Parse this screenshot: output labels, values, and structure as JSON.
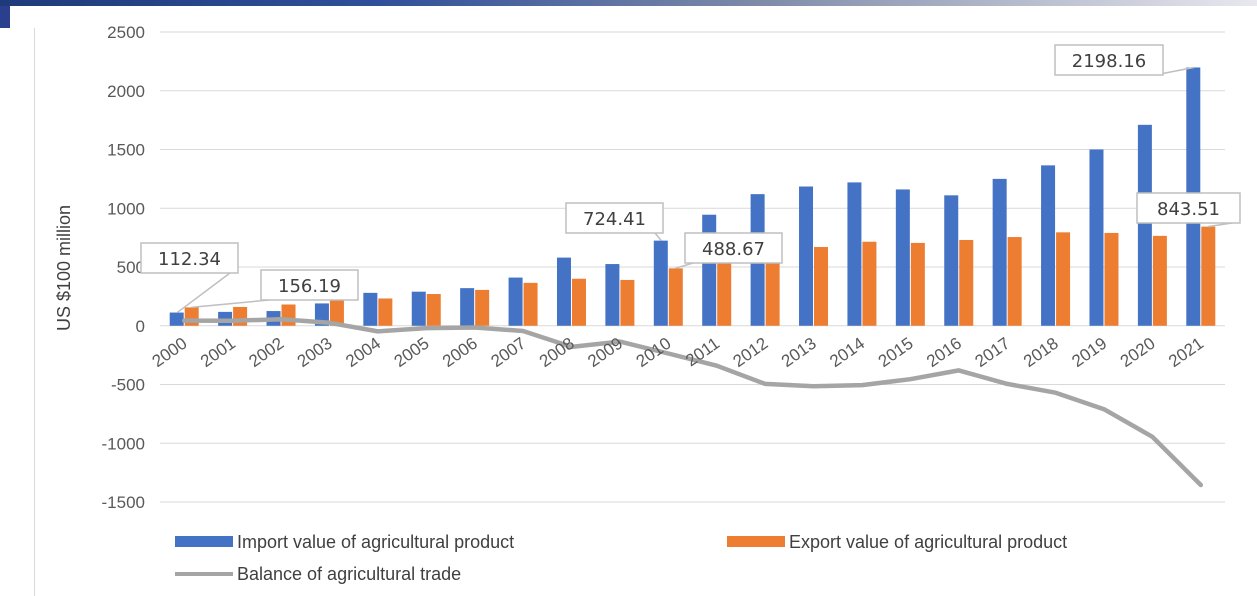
{
  "chart_data": {
    "type": "bar",
    "title": "",
    "xlabel": "",
    "ylabel": "US $100 million",
    "ylim": [
      -1500,
      2500
    ],
    "yticks": [
      2500,
      2000,
      1500,
      1000,
      500,
      0,
      -500,
      -1000,
      -1500
    ],
    "grid": true,
    "legend_position": "bottom",
    "categories": [
      "2000",
      "2001",
      "2002",
      "2003",
      "2004",
      "2005",
      "2006",
      "2007",
      "2008",
      "2009",
      "2010",
      "2011",
      "2012",
      "2013",
      "2014",
      "2015",
      "2016",
      "2017",
      "2018",
      "2019",
      "2020",
      "2021"
    ],
    "series": [
      {
        "name": "Import value of agricultural product",
        "type": "bar",
        "color": "#4472c4",
        "values": [
          112.34,
          118,
          125,
          190,
          280,
          290,
          320,
          410,
          580,
          525,
          724.41,
          945,
          1120,
          1185,
          1220,
          1160,
          1110,
          1250,
          1365,
          1500,
          1710,
          2198.16
        ]
      },
      {
        "name": "Export value of agricultural product",
        "type": "bar",
        "color": "#ed7d31",
        "values": [
          156.19,
          160,
          181,
          215,
          232,
          270,
          305,
          365,
          400,
          390,
          488.67,
          605,
          625,
          670,
          715,
          705,
          730,
          755,
          795,
          790,
          765,
          843.51
        ]
      },
      {
        "name": "Balance of agricultural trade",
        "type": "line",
        "color": "#a5a5a5",
        "values": [
          44,
          42,
          56,
          25,
          -48,
          -20,
          -15,
          -45,
          -180,
          -135,
          -236,
          -340,
          -495,
          -515,
          -505,
          -455,
          -380,
          -495,
          -570,
          -710,
          -945,
          -1355
        ]
      }
    ],
    "annotations": [
      {
        "text": "112.34",
        "series": 0,
        "category": "2000"
      },
      {
        "text": "156.19",
        "series": 1,
        "category": "2000"
      },
      {
        "text": "724.41",
        "series": 0,
        "category": "2010"
      },
      {
        "text": "488.67",
        "series": 1,
        "category": "2010"
      },
      {
        "text": "2198.16",
        "series": 0,
        "category": "2021"
      },
      {
        "text": "843.51",
        "series": 1,
        "category": "2021"
      }
    ]
  }
}
